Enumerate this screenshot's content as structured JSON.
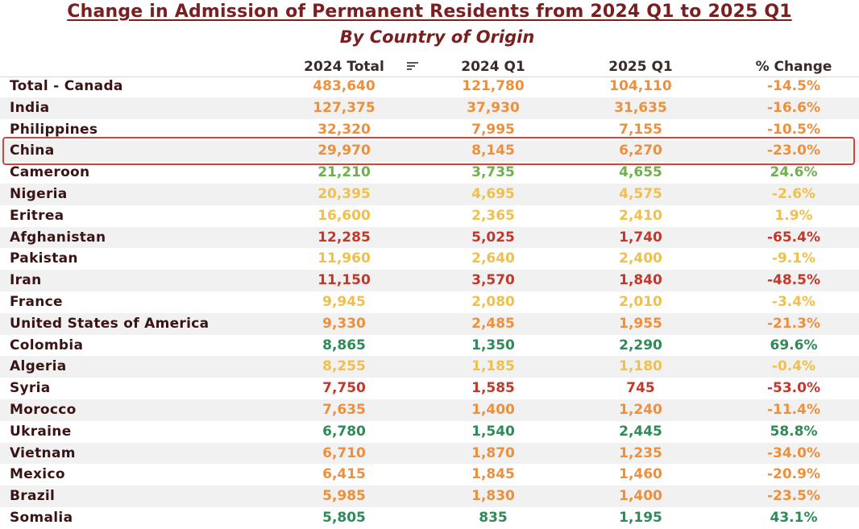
{
  "title": "Change in Admission of Permanent Residents from 2024 Q1 to 2025 Q1",
  "subtitle": "By Country of Origin",
  "columns": [
    "2024 Total",
    "2024 Q1",
    "2025 Q1",
    "% Change"
  ],
  "colors": {
    "red": "#c0392b",
    "orange": "#ee8f3b",
    "yellow": "#f1c04a",
    "lightgreen": "#6fb04f",
    "green": "#2e8b57"
  },
  "highlighted_row": "China",
  "chart_data": {
    "type": "table",
    "title": "Change in Admission of Permanent Residents from 2024 Q1 to 2025 Q1",
    "subtitle": "By Country of Origin",
    "columns": [
      "2024 Total",
      "2024 Q1",
      "2025 Q1",
      "% Change"
    ],
    "rows": [
      {
        "country": "Total - Canada",
        "total": "483,640",
        "q1_2024": "121,780",
        "q1_2025": "104,110",
        "change": "-14.5%",
        "color": "orange"
      },
      {
        "country": "India",
        "total": "127,375",
        "q1_2024": "37,930",
        "q1_2025": "31,635",
        "change": "-16.6%",
        "color": "orange"
      },
      {
        "country": "Philippines",
        "total": "32,320",
        "q1_2024": "7,995",
        "q1_2025": "7,155",
        "change": "-10.5%",
        "color": "orange"
      },
      {
        "country": "China",
        "total": "29,970",
        "q1_2024": "8,145",
        "q1_2025": "6,270",
        "change": "-23.0%",
        "color": "orange"
      },
      {
        "country": "Cameroon",
        "total": "21,210",
        "q1_2024": "3,735",
        "q1_2025": "4,655",
        "change": "24.6%",
        "color": "lightgreen"
      },
      {
        "country": "Nigeria",
        "total": "20,395",
        "q1_2024": "4,695",
        "q1_2025": "4,575",
        "change": "-2.6%",
        "color": "yellow"
      },
      {
        "country": "Eritrea",
        "total": "16,600",
        "q1_2024": "2,365",
        "q1_2025": "2,410",
        "change": "1.9%",
        "color": "yellow"
      },
      {
        "country": "Afghanistan",
        "total": "12,285",
        "q1_2024": "5,025",
        "q1_2025": "1,740",
        "change": "-65.4%",
        "color": "red"
      },
      {
        "country": "Pakistan",
        "total": "11,960",
        "q1_2024": "2,640",
        "q1_2025": "2,400",
        "change": "-9.1%",
        "color": "yellow"
      },
      {
        "country": "Iran",
        "total": "11,150",
        "q1_2024": "3,570",
        "q1_2025": "1,840",
        "change": "-48.5%",
        "color": "red"
      },
      {
        "country": "France",
        "total": "9,945",
        "q1_2024": "2,080",
        "q1_2025": "2,010",
        "change": "-3.4%",
        "color": "yellow"
      },
      {
        "country": "United States of America",
        "total": "9,330",
        "q1_2024": "2,485",
        "q1_2025": "1,955",
        "change": "-21.3%",
        "color": "orange"
      },
      {
        "country": "Colombia",
        "total": "8,865",
        "q1_2024": "1,350",
        "q1_2025": "2,290",
        "change": "69.6%",
        "color": "green"
      },
      {
        "country": "Algeria",
        "total": "8,255",
        "q1_2024": "1,185",
        "q1_2025": "1,180",
        "change": "-0.4%",
        "color": "yellow"
      },
      {
        "country": "Syria",
        "total": "7,750",
        "q1_2024": "1,585",
        "q1_2025": "745",
        "change": "-53.0%",
        "color": "red"
      },
      {
        "country": "Morocco",
        "total": "7,635",
        "q1_2024": "1,400",
        "q1_2025": "1,240",
        "change": "-11.4%",
        "color": "orange"
      },
      {
        "country": "Ukraine",
        "total": "6,780",
        "q1_2024": "1,540",
        "q1_2025": "2,445",
        "change": "58.8%",
        "color": "green"
      },
      {
        "country": "Vietnam",
        "total": "6,710",
        "q1_2024": "1,870",
        "q1_2025": "1,235",
        "change": "-34.0%",
        "color": "orange"
      },
      {
        "country": "Mexico",
        "total": "6,415",
        "q1_2024": "1,845",
        "q1_2025": "1,460",
        "change": "-20.9%",
        "color": "orange"
      },
      {
        "country": "Brazil",
        "total": "5,985",
        "q1_2024": "1,830",
        "q1_2025": "1,400",
        "change": "-23.5%",
        "color": "orange"
      },
      {
        "country": "Somalia",
        "total": "5,805",
        "q1_2024": "835",
        "q1_2025": "1,195",
        "change": "43.1%",
        "color": "green"
      }
    ]
  }
}
